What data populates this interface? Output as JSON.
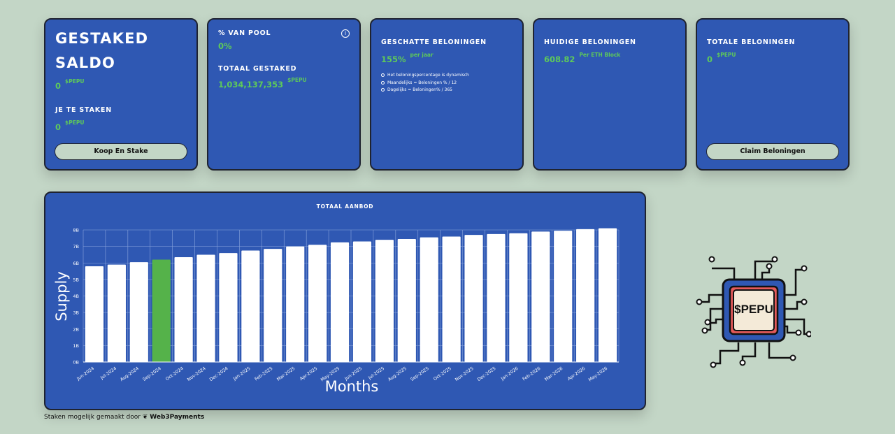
{
  "cards": {
    "staked": {
      "title_line1": "GESTAKED",
      "title_line2": "SALDO",
      "balance": "0",
      "unit": "$PEPU",
      "to_stake_label": "JE TE STAKEN",
      "to_stake_value": "0",
      "to_stake_unit": "$PEPU",
      "button": "Koop En Stake"
    },
    "pool": {
      "pct_label": "% VAN POOL",
      "pct_value": "0%",
      "total_label": "TOTAAL GESTAKED",
      "total_value": "1,034,137,353",
      "total_unit": "$PEPU",
      "info_icon": "info-icon"
    },
    "estimated": {
      "label": "GESCHATTE BELONINGEN",
      "value": "155%",
      "suffix": "per jaar",
      "notes": [
        "Het beloningspercentage is dynamisch",
        "Maandelijks = Beloningen % / 12",
        "Dagelijks = Beloningen% / 365"
      ]
    },
    "current": {
      "label": "HUIDIGE BELONINGEN",
      "value": "608.82",
      "suffix": "Per ETH Block"
    },
    "total": {
      "label": "TOTALE BELONINGEN",
      "value": "0",
      "unit": "$PEPU",
      "button": "Claim Beloningen"
    }
  },
  "chart_data": {
    "type": "bar",
    "title": "TOTAAL AANBOD",
    "xlabel": "Months",
    "ylabel": "Supply",
    "ylim": [
      0,
      8
    ],
    "yticks": [
      "0B",
      "1B",
      "2B",
      "3B",
      "4B",
      "5B",
      "6B",
      "7B",
      "8B"
    ],
    "categories": [
      "Jun-2024",
      "Jul-2024",
      "Aug-2024",
      "Sep-2024",
      "Oct-2024",
      "Nov-2024",
      "Dec-2024",
      "Jan-2025",
      "Feb-2025",
      "Mar-2025",
      "Apr-2025",
      "May-2025",
      "Jun-2025",
      "Jul-2025",
      "Aug-2025",
      "Sep-2025",
      "Oct-2025",
      "Nov-2025",
      "Dec-2025",
      "Jan-2026",
      "Feb-2026",
      "Mar-2026",
      "Apr-2026",
      "May-2026"
    ],
    "values": [
      5.8,
      5.9,
      6.05,
      6.2,
      6.35,
      6.5,
      6.6,
      6.75,
      6.85,
      7.0,
      7.1,
      7.25,
      7.3,
      7.4,
      7.45,
      7.55,
      7.6,
      7.7,
      7.75,
      7.8,
      7.9,
      7.95,
      8.05,
      8.1
    ],
    "highlight_index": 3,
    "bar_color": "#ffffff",
    "highlight_color": "#55b24a",
    "grid": true
  },
  "footer": {
    "text": "Staken mogelijk gemaakt door",
    "brand": "Web3Payments"
  },
  "chip": {
    "label": "$PEPU"
  }
}
